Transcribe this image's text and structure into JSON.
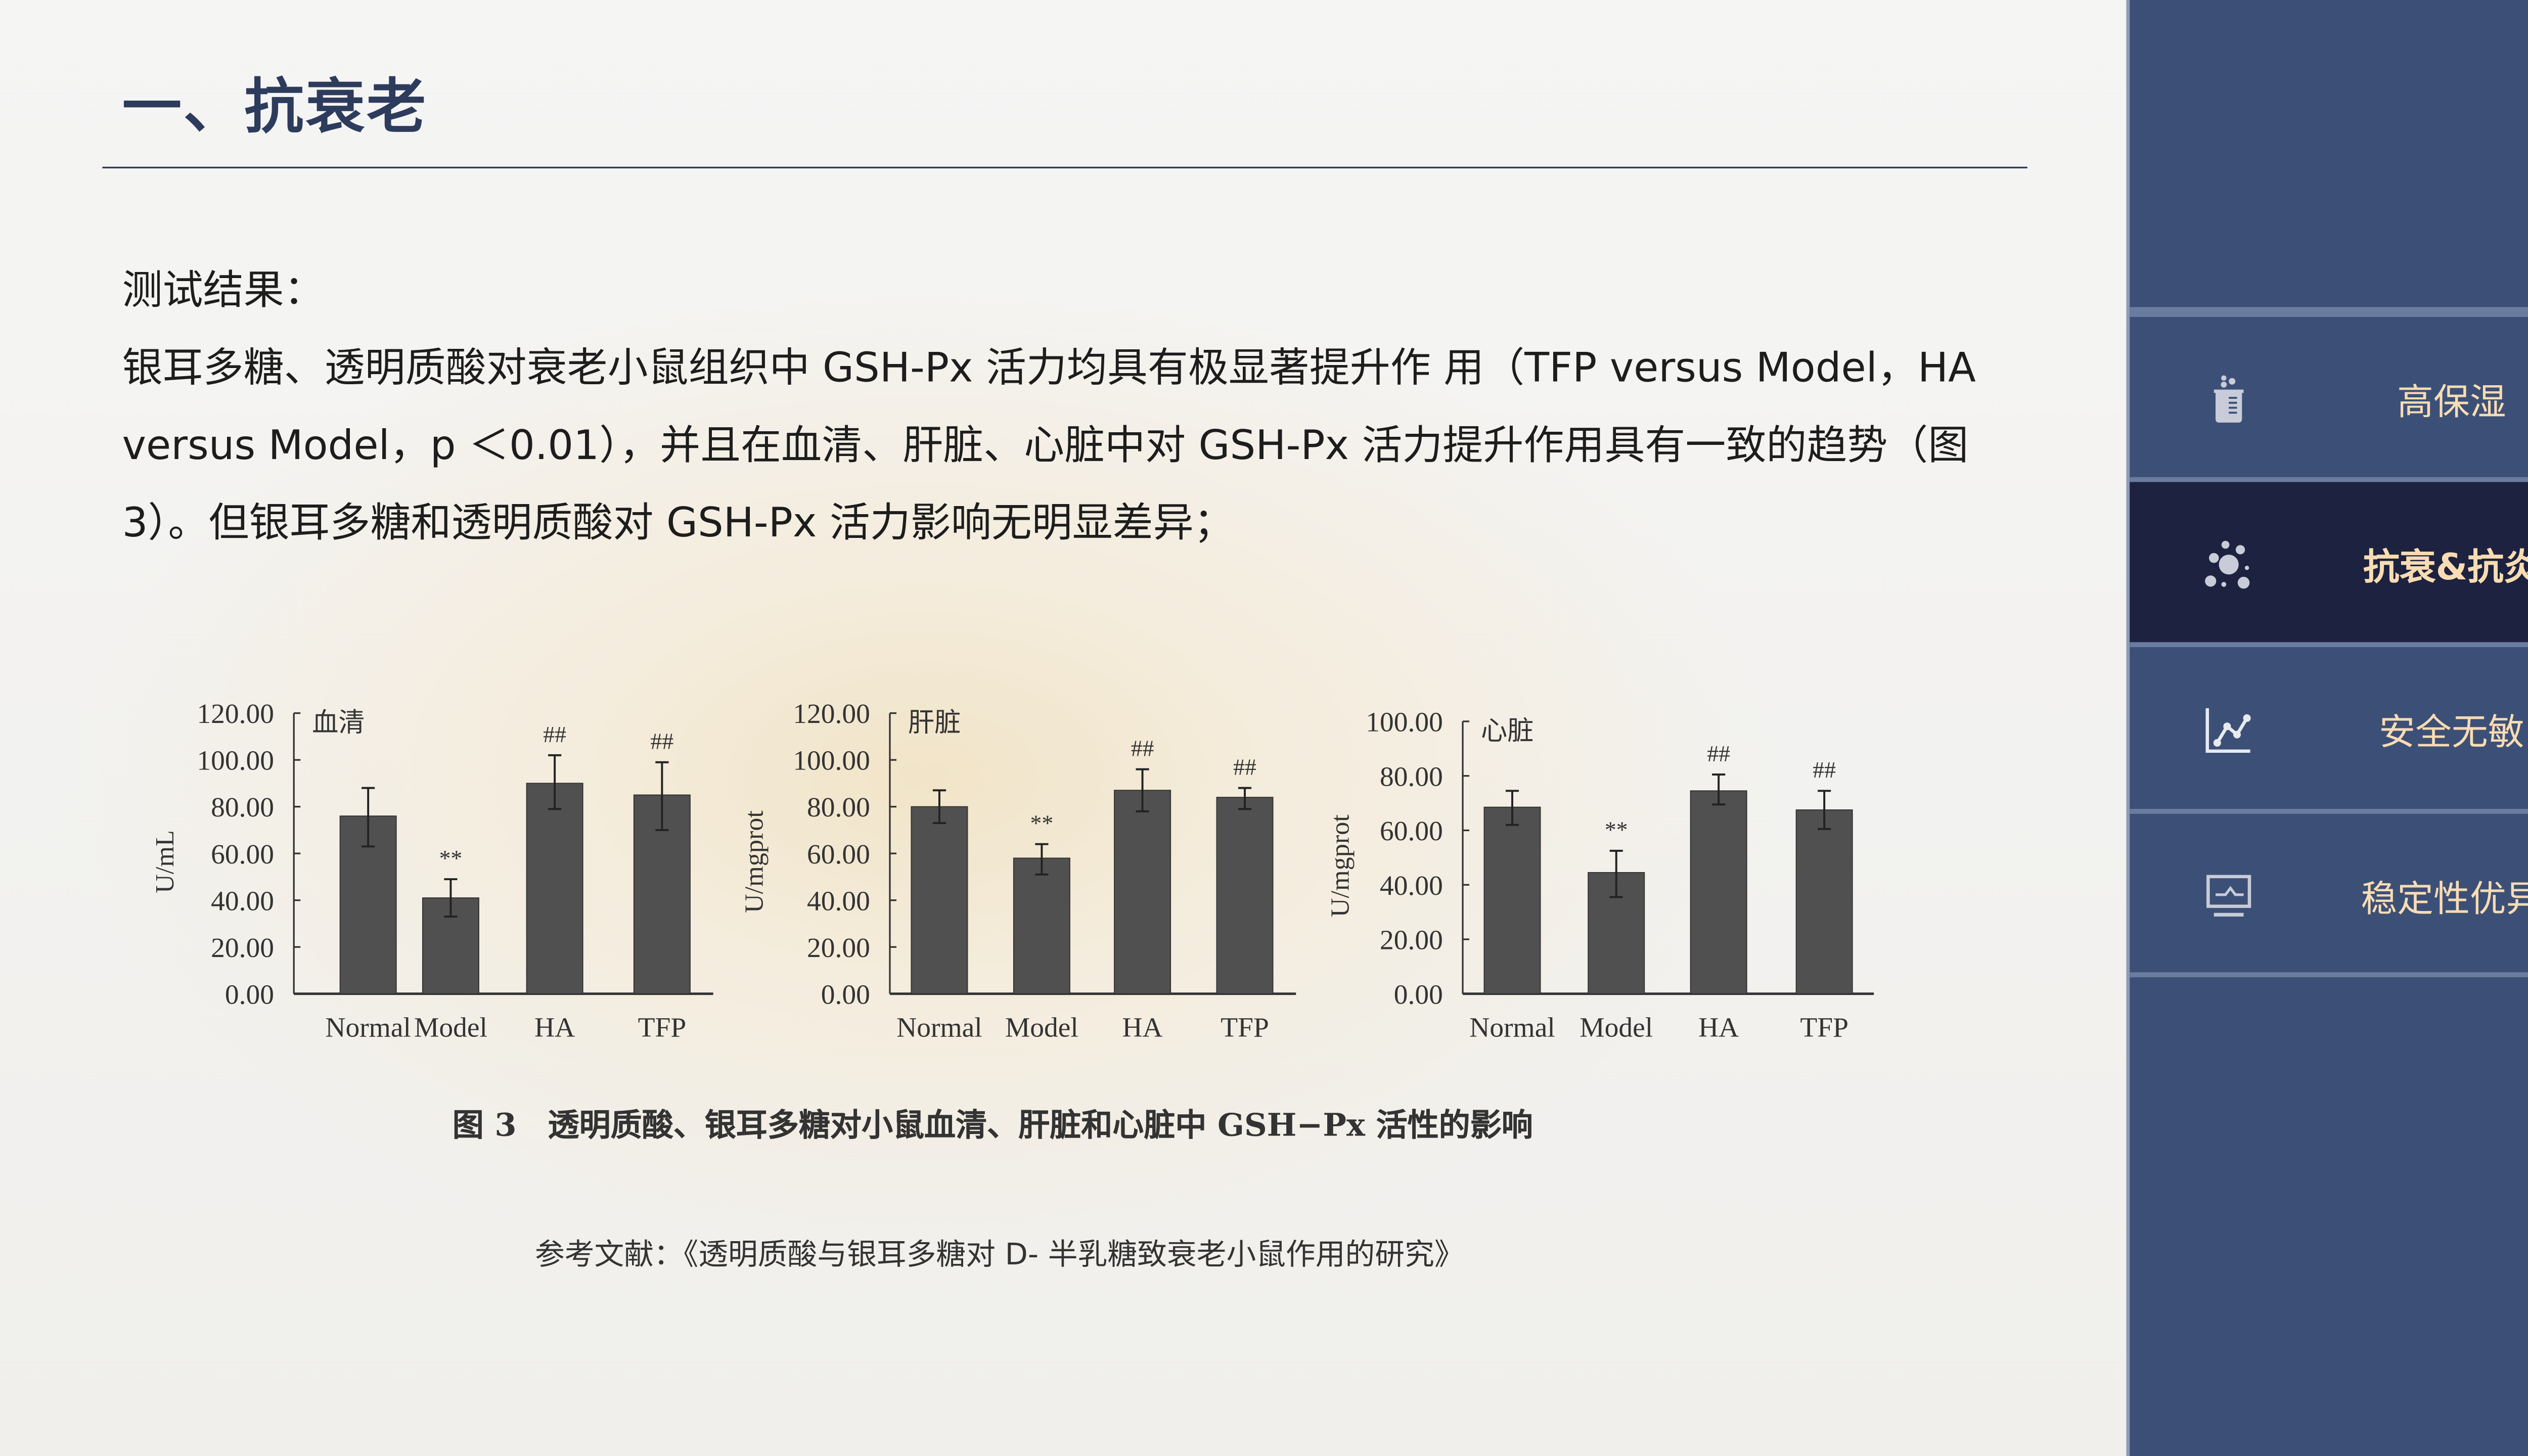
{
  "header": {
    "title": "一、抗衰老"
  },
  "content": {
    "heading": "测试结果：",
    "paragraph": "银耳多糖、透明质酸对衰老小鼠组织中 GSH-Px 活力均具有极显著提升作 用（TFP versus Model，HA versus Model，p ＜0.01），并且在血清、肝脏、心脏中对 GSH-Px 活力提升作用具有一致的趋势（图 3）。但银耳多糖和透明质酸对 GSH-Px 活力影响无明显差异；",
    "figure_caption": "图 3　透明质酸、银耳多糖对小鼠血清、肝脏和心脏中 GSH−Px 活性的影响",
    "reference": "参考文献：《透明质酸与银耳多糖对 D- 半乳糖致衰老小鼠作用的研究》"
  },
  "sidebar": {
    "items": [
      {
        "label": "高保湿",
        "icon": "beaker-icon",
        "active": false
      },
      {
        "label": "抗衰&抗炎",
        "icon": "bubbles-icon",
        "active": true
      },
      {
        "label": "安全无敏",
        "icon": "line-chart-icon",
        "active": false
      },
      {
        "label": "稳定性优异",
        "icon": "monitor-icon",
        "active": false
      }
    ],
    "colors": {
      "background": "#3c5077",
      "active": "#1c223f",
      "label": "#f9dcb3"
    }
  },
  "chart_data": [
    {
      "type": "bar",
      "title": "血清",
      "ylabel": "U/mL",
      "ylim": [
        0,
        120
      ],
      "yticks": [
        "0.00",
        "20.00",
        "40.00",
        "60.00",
        "80.00",
        "100.00",
        "120.00"
      ],
      "categories": [
        "Normal",
        "Model",
        "HA",
        "TFP"
      ],
      "values": [
        76,
        41,
        90,
        85
      ],
      "error_low": [
        63,
        33,
        79,
        70
      ],
      "error_high": [
        88,
        49,
        102,
        99
      ],
      "annotations": [
        "",
        "**",
        "##",
        "##"
      ],
      "bar_color": "#505050"
    },
    {
      "type": "bar",
      "title": "肝脏",
      "ylabel": "U/mgprot",
      "ylim": [
        0,
        120
      ],
      "yticks": [
        "0.00",
        "20.00",
        "40.00",
        "60.00",
        "80.00",
        "100.00",
        "120.00"
      ],
      "categories": [
        "Normal",
        "Model",
        "HA",
        "TFP"
      ],
      "values": [
        80,
        58,
        87,
        84
      ],
      "error_low": [
        73,
        51,
        78,
        79
      ],
      "error_high": [
        87,
        64,
        96,
        88
      ],
      "annotations": [
        "",
        "**",
        "##",
        "##"
      ],
      "bar_color": "#505050"
    },
    {
      "type": "bar",
      "title": "心脏",
      "ylabel": "U/mgprot",
      "ylim": [
        0,
        100
      ],
      "yticks": [
        "0.00",
        "20.00",
        "40.00",
        "60.00",
        "80.00",
        "100.00"
      ],
      "categories": [
        "Normal",
        "Model",
        "HA",
        "TFP"
      ],
      "values": [
        68.5,
        44.5,
        74.5,
        67.5
      ],
      "error_low": [
        62,
        35.5,
        69.5,
        60.5
      ],
      "error_high": [
        74.5,
        52.5,
        80.5,
        74.5
      ],
      "annotations": [
        "",
        "**",
        "##",
        "##"
      ],
      "bar_color": "#505050"
    }
  ]
}
